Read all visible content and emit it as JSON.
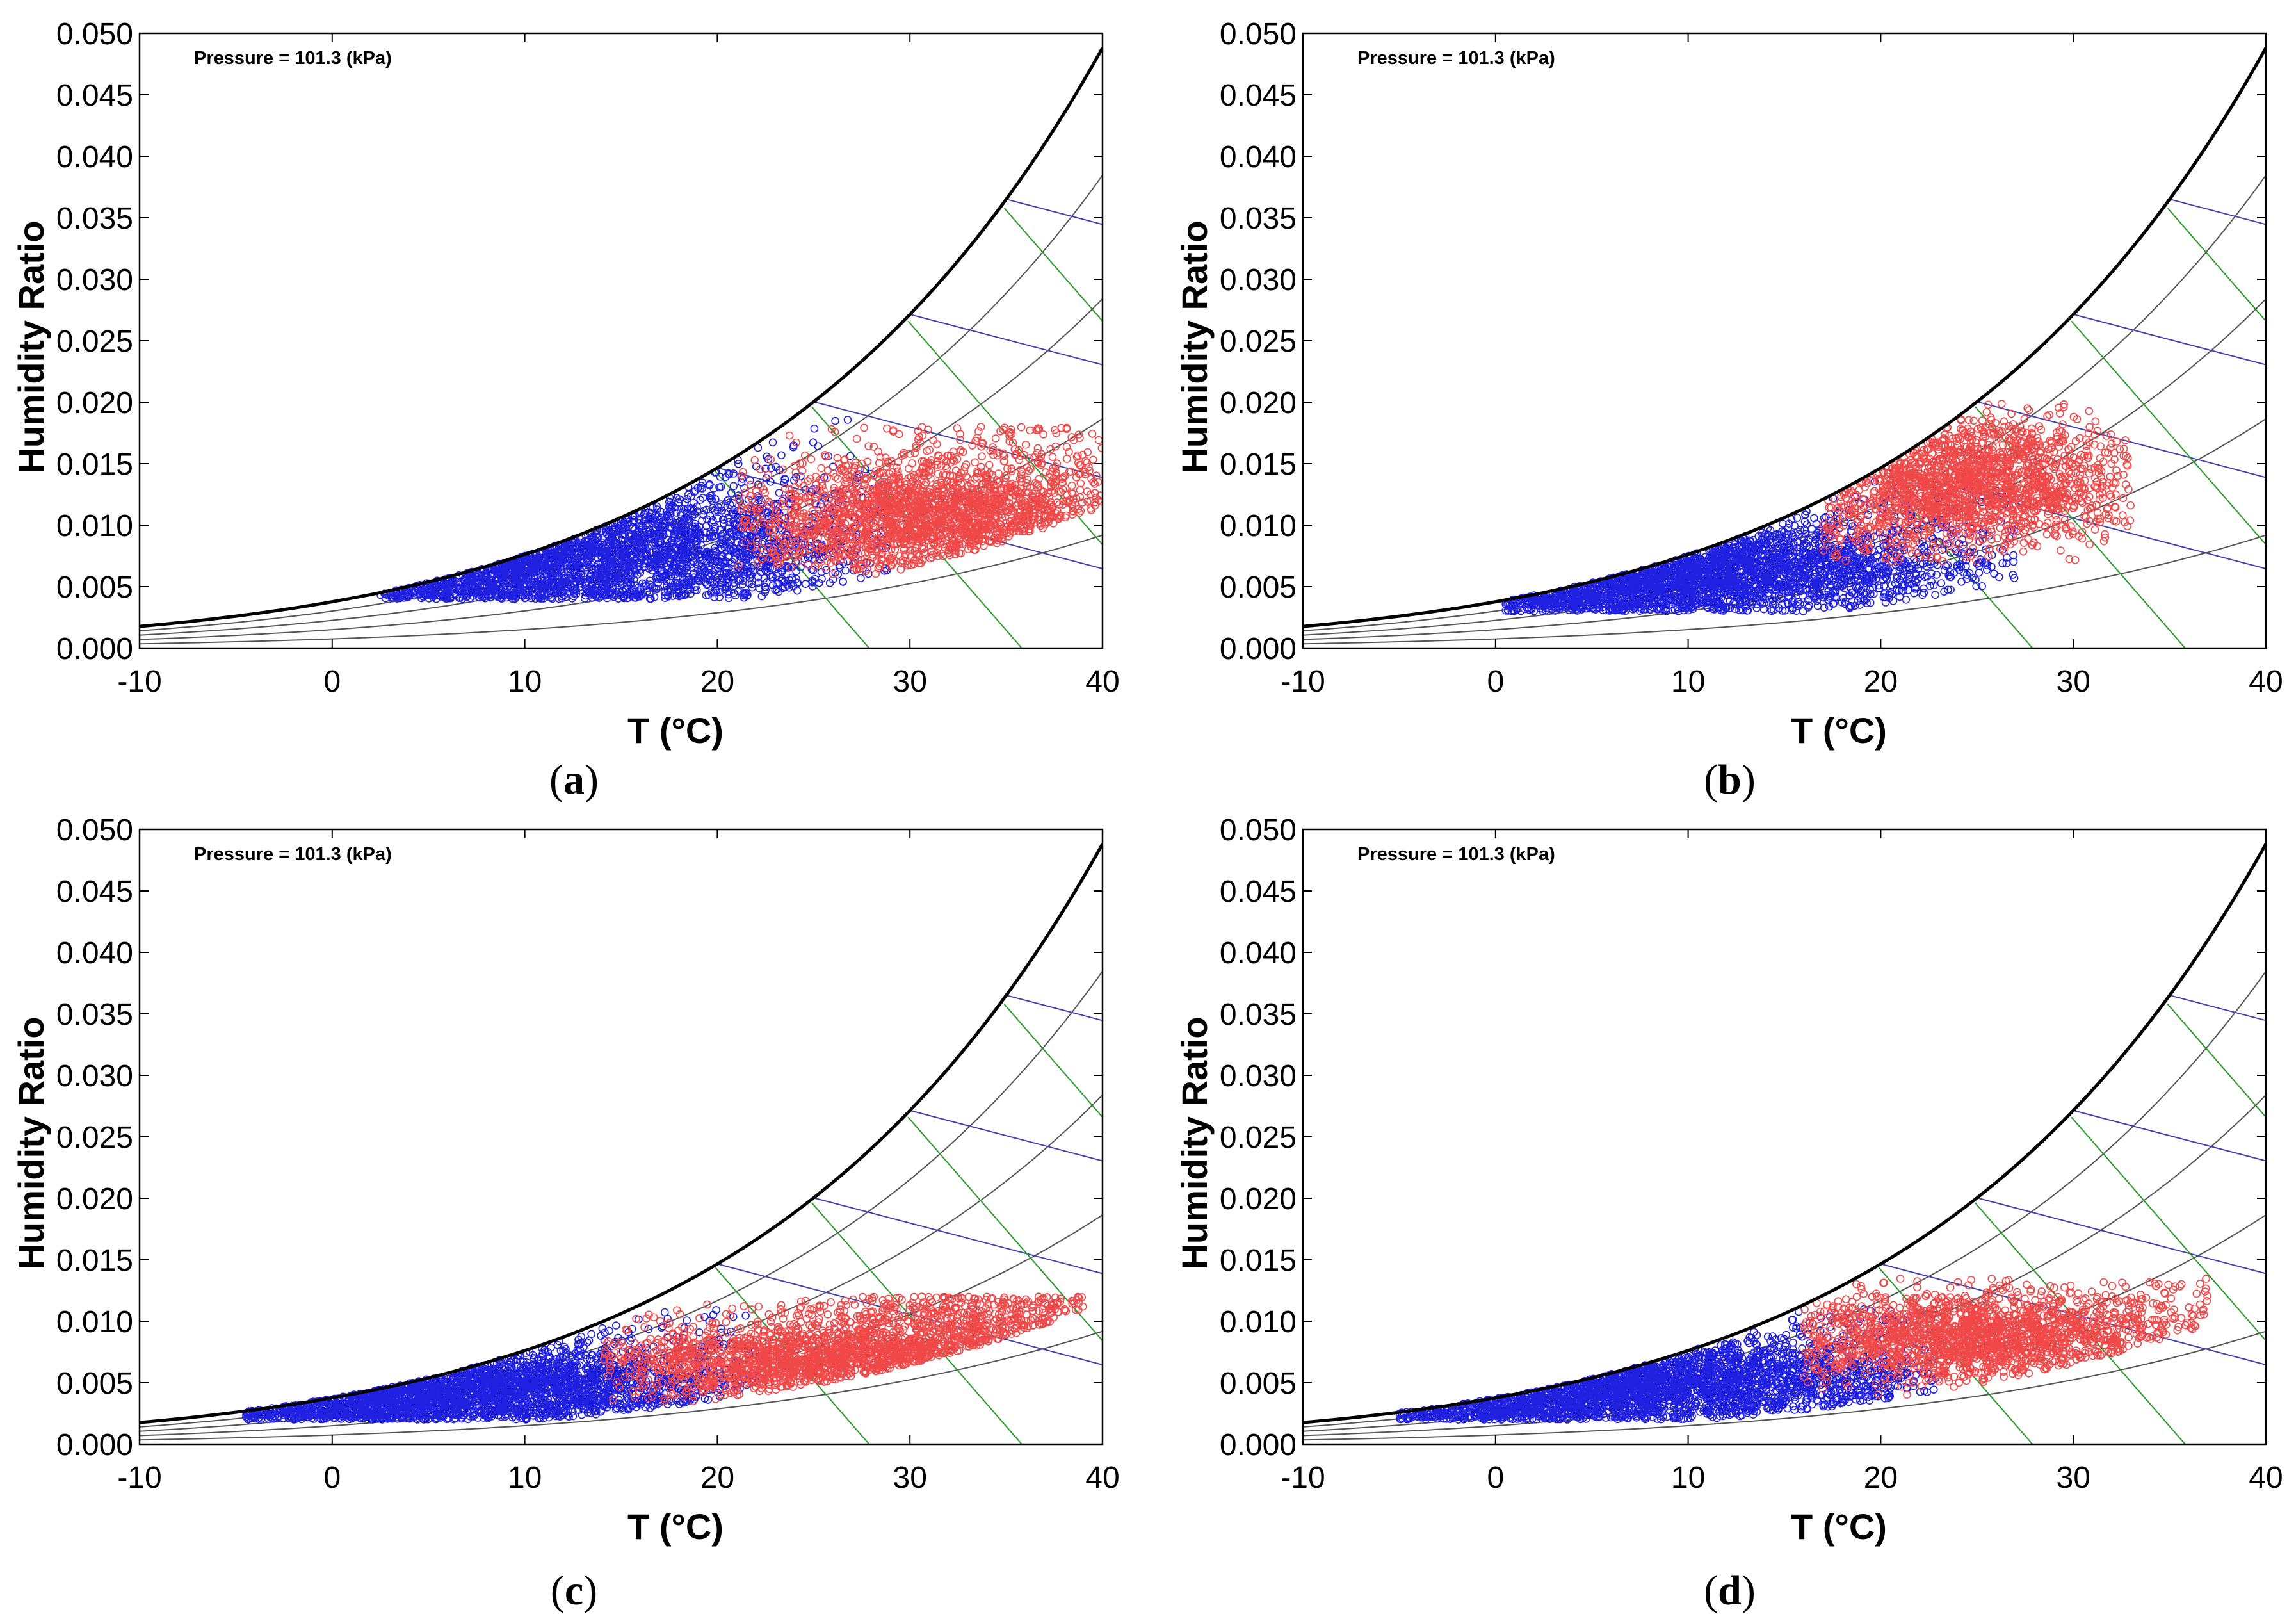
{
  "figure": {
    "panels": [
      {
        "id": "a",
        "caption_letter": "a"
      },
      {
        "id": "b",
        "caption_letter": "b"
      },
      {
        "id": "c",
        "caption_letter": "c"
      },
      {
        "id": "d",
        "caption_letter": "d"
      }
    ],
    "colors": {
      "cool_points": "#2020e0",
      "warm_points": "#f04848",
      "saturation_curve": "#000000",
      "rh_curves": "#555555",
      "enthalpy_lines": "#4040b0",
      "wetbulb_lines": "#2a9a2a"
    }
  },
  "chart_data": [
    {
      "type": "scatter",
      "panel": "a",
      "annotation": "Pressure = 101.3 (kPa)",
      "xlabel": "T (°C)",
      "ylabel": "Humidity Ratio",
      "xlim": [
        -10,
        40
      ],
      "ylim": [
        0,
        0.05
      ],
      "xticks": [
        "-10",
        "0",
        "10",
        "20",
        "30",
        "40"
      ],
      "yticks": [
        "0.000",
        "0.005",
        "0.010",
        "0.015",
        "0.020",
        "0.025",
        "0.030",
        "0.035",
        "0.040",
        "0.045",
        "0.050"
      ],
      "grid": false,
      "series": [
        {
          "color": "blue",
          "t_range": [
            2.5,
            29
          ],
          "w_range": [
            0.004,
            0.019
          ],
          "centroid": [
            15,
            0.0075
          ],
          "count": 2600
        },
        {
          "color": "red",
          "t_range": [
            21,
            40
          ],
          "w_range": [
            0.006,
            0.018
          ],
          "centroid": [
            31,
            0.0105
          ],
          "count": 2000
        }
      ]
    },
    {
      "type": "scatter",
      "panel": "b",
      "annotation": "Pressure = 101.3 (kPa)",
      "xlabel": "T (°C)",
      "ylabel": "Humidity Ratio",
      "xlim": [
        -10,
        40
      ],
      "ylim": [
        0,
        0.05
      ],
      "xticks": [
        "-10",
        "0",
        "10",
        "20",
        "30",
        "40"
      ],
      "yticks": [
        "0.000",
        "0.005",
        "0.010",
        "0.015",
        "0.020",
        "0.025",
        "0.030",
        "0.035",
        "0.040",
        "0.045",
        "0.050"
      ],
      "grid": false,
      "series": [
        {
          "color": "blue",
          "t_range": [
            0.5,
            27
          ],
          "w_range": [
            0.003,
            0.014
          ],
          "centroid": [
            12,
            0.0065
          ],
          "count": 2600
        },
        {
          "color": "red",
          "t_range": [
            17,
            33
          ],
          "w_range": [
            0.007,
            0.02
          ],
          "centroid": [
            25,
            0.0135
          ],
          "count": 1700
        }
      ]
    },
    {
      "type": "scatter",
      "panel": "c",
      "annotation": "Pressure = 101.3 (kPa)",
      "xlabel": "T (°C)",
      "ylabel": "Humidity Ratio",
      "xlim": [
        -10,
        40
      ],
      "ylim": [
        0,
        0.05
      ],
      "xticks": [
        "-10",
        "0",
        "10",
        "20",
        "30",
        "40"
      ],
      "yticks": [
        "0.000",
        "0.005",
        "0.010",
        "0.015",
        "0.020",
        "0.025",
        "0.030",
        "0.035",
        "0.040",
        "0.045",
        "0.050"
      ],
      "grid": false,
      "series": [
        {
          "color": "blue",
          "t_range": [
            -4.5,
            22
          ],
          "w_range": [
            0.002,
            0.011
          ],
          "centroid": [
            8,
            0.0045
          ],
          "count": 2600
        },
        {
          "color": "red",
          "t_range": [
            14,
            39
          ],
          "w_range": [
            0.0035,
            0.012
          ],
          "centroid": [
            26,
            0.0068
          ],
          "count": 2000
        }
      ]
    },
    {
      "type": "scatter",
      "panel": "d",
      "annotation": "Pressure = 101.3 (kPa)",
      "xlabel": "T (°C)",
      "ylabel": "Humidity Ratio",
      "xlim": [
        -10,
        40
      ],
      "ylim": [
        0,
        0.05
      ],
      "xticks": [
        "-10",
        "0",
        "10",
        "20",
        "30",
        "40"
      ],
      "yticks": [
        "0.000",
        "0.005",
        "0.010",
        "0.015",
        "0.020",
        "0.025",
        "0.030",
        "0.035",
        "0.040",
        "0.045",
        "0.050"
      ],
      "grid": false,
      "series": [
        {
          "color": "blue",
          "t_range": [
            -5,
            23
          ],
          "w_range": [
            0.002,
            0.011
          ],
          "centroid": [
            9,
            0.005
          ],
          "count": 2600
        },
        {
          "color": "red",
          "t_range": [
            16,
            37
          ],
          "w_range": [
            0.004,
            0.0135
          ],
          "centroid": [
            25,
            0.0088
          ],
          "count": 1800
        }
      ]
    }
  ]
}
